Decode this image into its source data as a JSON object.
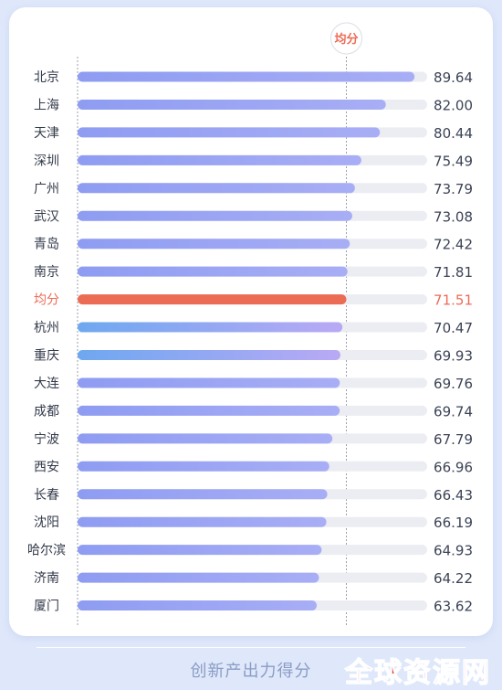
{
  "chart_data": {
    "type": "bar",
    "orientation": "horizontal",
    "categories": [
      "北京",
      "上海",
      "天津",
      "深圳",
      "广州",
      "武汉",
      "青岛",
      "南京",
      "均分",
      "杭州",
      "重庆",
      "大连",
      "成都",
      "宁波",
      "西安",
      "长春",
      "沈阳",
      "哈尔滨",
      "济南",
      "厦门"
    ],
    "values": [
      89.64,
      82.0,
      80.44,
      75.49,
      73.79,
      73.08,
      72.42,
      71.81,
      71.51,
      70.47,
      69.93,
      69.76,
      69.74,
      67.79,
      66.96,
      66.43,
      66.19,
      64.93,
      64.22,
      63.62
    ],
    "value_labels": [
      "89.64",
      "82.00",
      "80.44",
      "75.49",
      "73.79",
      "73.08",
      "72.42",
      "71.81",
      "71.51",
      "70.47",
      "69.93",
      "69.76",
      "69.74",
      "67.79",
      "66.96",
      "66.43",
      "66.19",
      "64.93",
      "64.22",
      "63.62"
    ],
    "average": 71.51,
    "average_label": "均分",
    "highlight_category": "均分",
    "xlim": [
      0,
      93
    ],
    "title": "",
    "xlabel": "创新产出力得分",
    "ylabel": "",
    "grid": false,
    "colors": {
      "bar_start": "#8e9cf2",
      "bar_end": "#a8aef5",
      "bar_alt_start": "#6ea8f0",
      "bar_alt_end": "#b9a9f5",
      "track": "#ebedf2",
      "average_bar": "#ec6b55",
      "average_text": "#ec6b55",
      "label_text": "#333a4a",
      "value_text": "#3b4356",
      "guide_line": "#9aa0ad"
    }
  },
  "footer": {
    "caption": "创新产出力得分",
    "watermark": "全球资源网"
  }
}
